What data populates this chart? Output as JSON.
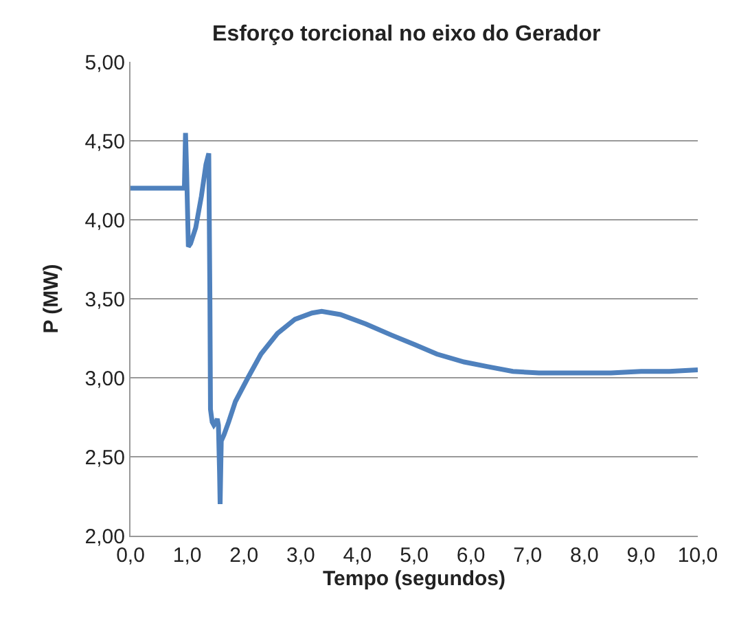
{
  "chart_data": {
    "type": "line",
    "title": "Esforço torcional no eixo do Gerador",
    "xlabel": "Tempo (segundos)",
    "ylabel": "P (MW)",
    "series": [
      {
        "color": "#4f81bd",
        "x": [
          0,
          0.95,
          0.97,
          0.99,
          1.02,
          1.06,
          1.15,
          1.25,
          1.33,
          1.38,
          1.4,
          1.41,
          1.44,
          1.47,
          1.51,
          1.53,
          1.55,
          1.57,
          1.58,
          1.6,
          1.65,
          1.73,
          1.85,
          2.07,
          2.3,
          2.59,
          2.9,
          3.2,
          3.37,
          3.7,
          4.15,
          4.6,
          5.01,
          5.4,
          5.88,
          6.3,
          6.74,
          7.2,
          7.6,
          8.0,
          8.47,
          9.0,
          9.5,
          10.0
        ],
        "values": [
          4.2,
          4.2,
          4.55,
          4.3,
          3.83,
          3.85,
          3.95,
          4.15,
          4.35,
          4.42,
          3.5,
          2.8,
          2.72,
          2.7,
          2.72,
          2.74,
          2.7,
          2.4,
          2.2,
          2.6,
          2.64,
          2.72,
          2.85,
          3.0,
          3.15,
          3.28,
          3.37,
          3.41,
          3.42,
          3.4,
          3.34,
          3.27,
          3.21,
          3.15,
          3.1,
          3.07,
          3.04,
          3.03,
          3.03,
          3.03,
          3.03,
          3.04,
          3.04,
          3.05
        ]
      }
    ],
    "xlim": [
      0,
      10
    ],
    "xticks": [
      {
        "value": 0,
        "label": "0,0"
      },
      {
        "value": 1,
        "label": "1,0"
      },
      {
        "value": 2,
        "label": "2,0"
      },
      {
        "value": 3,
        "label": "3,0"
      },
      {
        "value": 4,
        "label": "4,0"
      },
      {
        "value": 5,
        "label": "5,0"
      },
      {
        "value": 6,
        "label": "6,0"
      },
      {
        "value": 7,
        "label": "7,0"
      },
      {
        "value": 8,
        "label": "8,0"
      },
      {
        "value": 9,
        "label": "9,0"
      },
      {
        "value": 10,
        "label": "10,0"
      }
    ],
    "ylim": [
      2,
      5
    ],
    "yticks": [
      {
        "value": 2,
        "label": "2,00"
      },
      {
        "value": 2.5,
        "label": "2,50"
      },
      {
        "value": 3,
        "label": "3,00"
      },
      {
        "value": 3.5,
        "label": "3,50"
      },
      {
        "value": 4,
        "label": "4,00"
      },
      {
        "value": 4.5,
        "label": "4,50"
      },
      {
        "value": 5,
        "label": "5,00"
      }
    ],
    "grid": "y",
    "marker": "none",
    "line_style": "solid"
  }
}
